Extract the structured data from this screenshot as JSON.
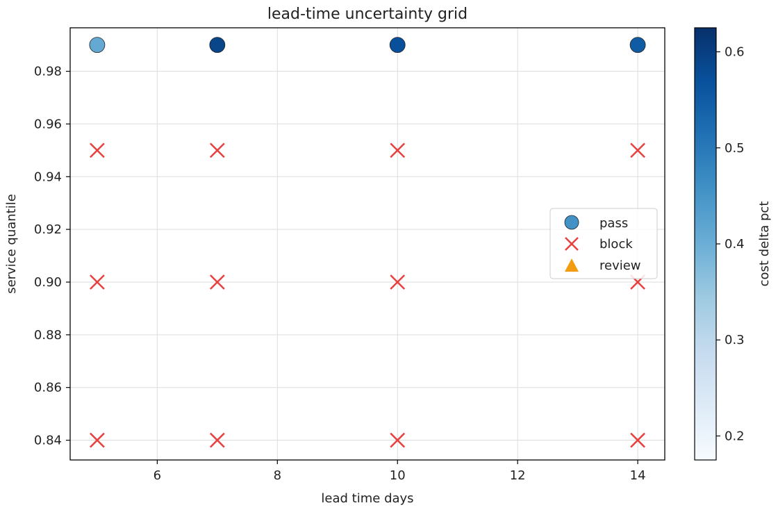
{
  "chart_data": {
    "type": "scatter",
    "title": "lead-time uncertainty grid",
    "xlabel": "lead time days",
    "ylabel": "service quantile",
    "xlim": [
      4.55,
      14.45
    ],
    "ylim": [
      0.8325,
      0.9965
    ],
    "xticks": [
      6,
      8,
      10,
      12,
      14
    ],
    "yticks": [
      0.84,
      0.86,
      0.88,
      0.9,
      0.92,
      0.94,
      0.96,
      0.98
    ],
    "ytick_labels": [
      "0.84",
      "0.86",
      "0.88",
      "0.90",
      "0.92",
      "0.94",
      "0.96",
      "0.98"
    ],
    "grid": true,
    "legend_placement": "center-right",
    "colorbar": {
      "label": "cost delta pct",
      "range": [
        0.175,
        0.625
      ],
      "ticks": [
        0.2,
        0.3,
        0.4,
        0.5,
        0.6
      ],
      "tick_labels": [
        "0.2",
        "0.3",
        "0.4",
        "0.5",
        "0.6"
      ],
      "colormap": "Blues",
      "color_low": "#f7fbff",
      "color_high": "#08306b"
    },
    "series": [
      {
        "name": "pass",
        "marker": "circle",
        "color": "#4292c6",
        "points": [
          {
            "x": 5,
            "y": 0.99,
            "c": 0.41
          },
          {
            "x": 7,
            "y": 0.99,
            "c": 0.59
          },
          {
            "x": 10,
            "y": 0.99,
            "c": 0.57
          },
          {
            "x": 14,
            "y": 0.99,
            "c": 0.55
          }
        ]
      },
      {
        "name": "block",
        "marker": "x",
        "color": "#e8403f",
        "points": [
          {
            "x": 5,
            "y": 0.95
          },
          {
            "x": 7,
            "y": 0.95
          },
          {
            "x": 10,
            "y": 0.95
          },
          {
            "x": 14,
            "y": 0.95
          },
          {
            "x": 5,
            "y": 0.9
          },
          {
            "x": 7,
            "y": 0.9
          },
          {
            "x": 10,
            "y": 0.9
          },
          {
            "x": 14,
            "y": 0.9
          },
          {
            "x": 5,
            "y": 0.84
          },
          {
            "x": 7,
            "y": 0.84
          },
          {
            "x": 10,
            "y": 0.84
          },
          {
            "x": 14,
            "y": 0.84
          }
        ]
      },
      {
        "name": "review",
        "marker": "triangle",
        "color": "#f39c12",
        "points": []
      }
    ]
  }
}
